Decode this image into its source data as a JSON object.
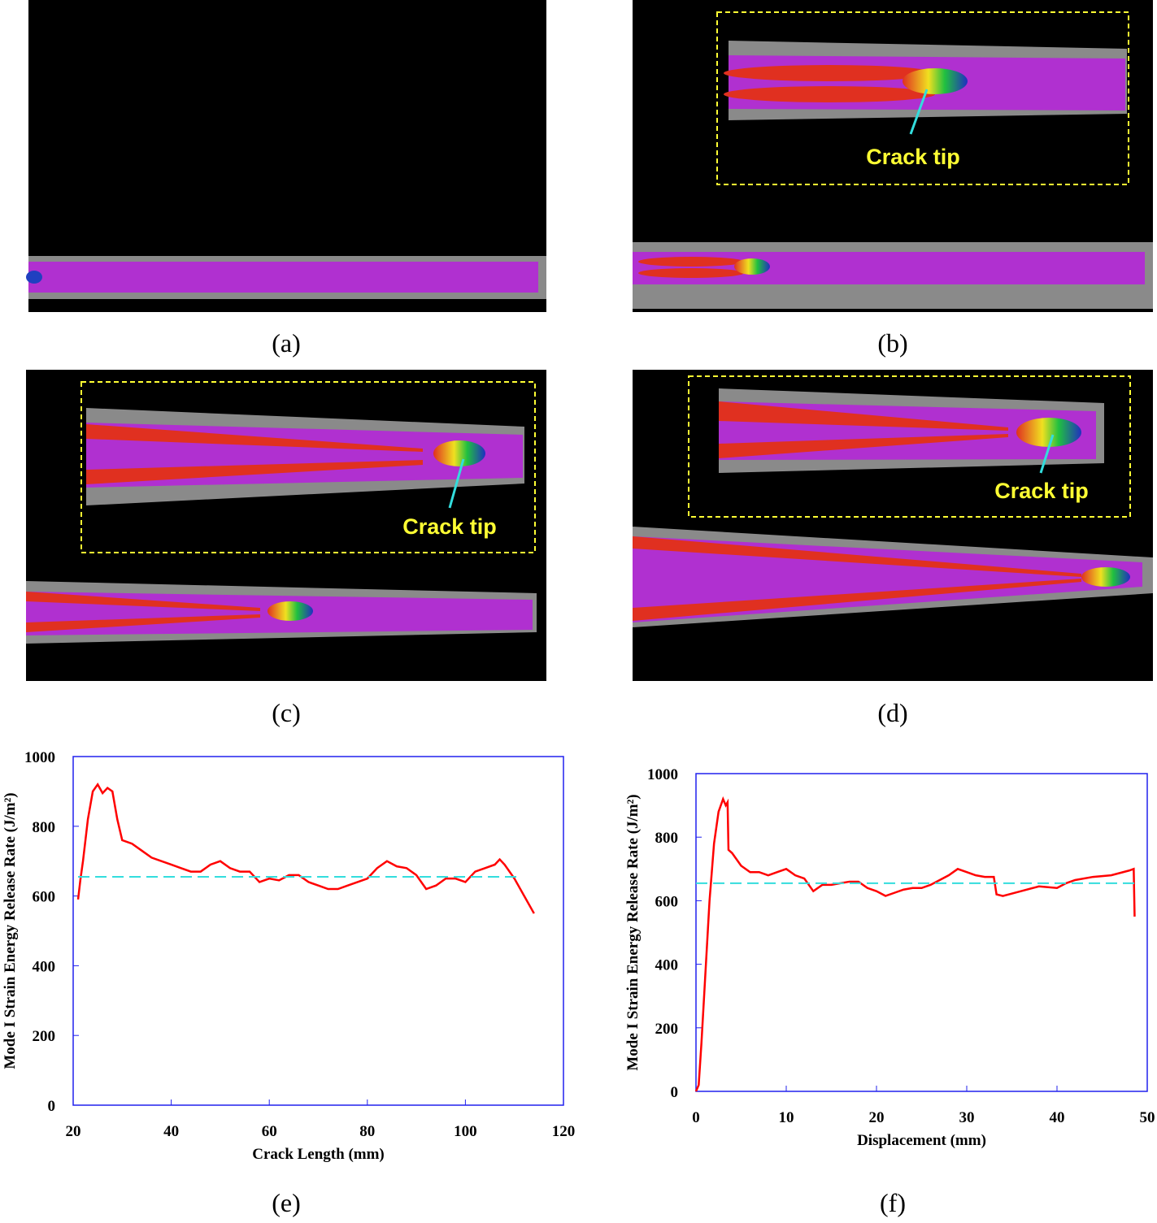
{
  "panels": {
    "a": "(a)",
    "b": "(b)",
    "c": "(c)",
    "d": "(d)",
    "e": "(e)",
    "f": "(f)"
  },
  "annotations": {
    "b": "Crack tip",
    "c": "Crack tip",
    "d": "Crack tip"
  },
  "chart_data": [
    {
      "type": "line",
      "xlabel": "Crack Length (mm)",
      "ylabel": "Mode I Strain Energy Release Rate  (J/m²)",
      "xlim": [
        20,
        120
      ],
      "xticks": [
        20,
        40,
        60,
        80,
        100,
        120
      ],
      "ylim": [
        0,
        1000
      ],
      "yticks": [
        0,
        200,
        400,
        600,
        800,
        1000
      ],
      "series": [
        {
          "color": "#ff0000",
          "x": [
            21,
            21.5,
            22,
            23,
            24,
            25,
            26,
            27,
            28,
            29,
            30,
            32,
            34,
            36,
            38,
            40,
            42,
            44,
            46,
            48,
            50,
            52,
            54,
            56,
            58,
            60,
            62,
            64,
            66,
            68,
            70,
            72,
            74,
            76,
            78,
            80,
            82,
            84,
            86,
            88,
            90,
            92,
            94,
            96,
            98,
            100,
            102,
            104,
            106,
            107,
            108,
            110,
            112,
            114
          ],
          "values": [
            590,
            650,
            700,
            820,
            900,
            920,
            895,
            910,
            900,
            820,
            760,
            750,
            730,
            710,
            700,
            690,
            680,
            670,
            670,
            690,
            700,
            680,
            670,
            670,
            640,
            650,
            645,
            660,
            660,
            640,
            630,
            620,
            620,
            630,
            640,
            650,
            680,
            700,
            685,
            680,
            660,
            620,
            630,
            650,
            650,
            640,
            670,
            680,
            690,
            705,
            690,
            650,
            600,
            550
          ]
        },
        {
          "color": "#33dddd",
          "dashed": true,
          "x": [
            21,
            111
          ],
          "values": [
            655,
            655
          ]
        }
      ]
    },
    {
      "type": "line",
      "xlabel": "Displacement (mm)",
      "ylabel": "Mode I Strain Energy Release Rate  (J/m²)",
      "xlim": [
        0,
        50
      ],
      "xticks": [
        0,
        10,
        20,
        30,
        40,
        50
      ],
      "ylim": [
        0,
        1000
      ],
      "yticks": [
        0,
        200,
        400,
        600,
        800,
        1000
      ],
      "series": [
        {
          "color": "#ff0000",
          "x": [
            0,
            0.3,
            0.6,
            1,
            1.5,
            2,
            2.5,
            3,
            3.3,
            3.5,
            3.6,
            4,
            5,
            6,
            7,
            8,
            9,
            10,
            11,
            12,
            13,
            14,
            15,
            16,
            17,
            18,
            19,
            20,
            21,
            22,
            23,
            24,
            25,
            26,
            27,
            28,
            29,
            30,
            31,
            32,
            33,
            33.3,
            34,
            36,
            38,
            40,
            41,
            42,
            44,
            46,
            48,
            48.5,
            48.6
          ],
          "values": [
            0,
            20,
            150,
            350,
            600,
            780,
            880,
            920,
            900,
            910,
            760,
            750,
            710,
            690,
            690,
            680,
            690,
            700,
            680,
            670,
            630,
            650,
            650,
            655,
            660,
            660,
            640,
            630,
            615,
            625,
            635,
            640,
            640,
            650,
            665,
            680,
            700,
            690,
            680,
            675,
            675,
            620,
            615,
            630,
            645,
            640,
            655,
            665,
            675,
            680,
            695,
            700,
            550
          ]
        },
        {
          "color": "#33dddd",
          "dashed": true,
          "x": [
            0,
            49
          ],
          "values": [
            655,
            655
          ]
        }
      ]
    }
  ]
}
